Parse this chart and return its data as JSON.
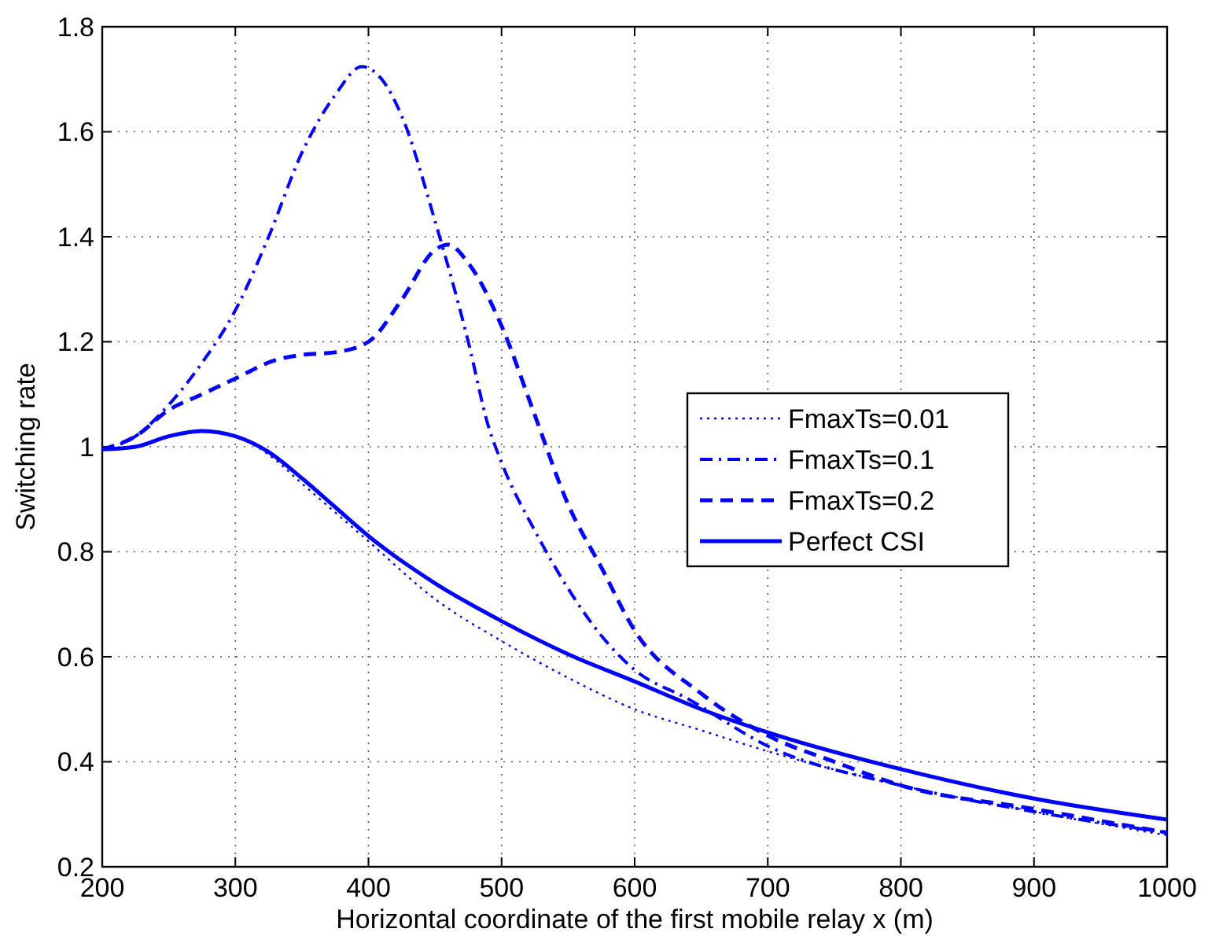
{
  "chart_data": {
    "type": "line",
    "xlabel": "Horizontal coordinate of the first mobile relay x (m)",
    "ylabel": "Switching rate",
    "xlim": [
      200,
      1000
    ],
    "ylim": [
      0.2,
      1.8
    ],
    "xticks": [
      200,
      300,
      400,
      500,
      600,
      700,
      800,
      900,
      1000
    ],
    "yticks": [
      0.2,
      0.4,
      0.6,
      0.8,
      1,
      1.2,
      1.4,
      1.6,
      1.8
    ],
    "grid": true,
    "legend": "right",
    "marker": "none",
    "series": [
      {
        "name": "FmaxTs=0.01",
        "color": "#0000ff",
        "line_style": "dotted",
        "x": [
          200,
          225,
          250,
          275,
          300,
          325,
          350,
          375,
          400,
          450,
          500,
          550,
          600,
          650,
          700,
          800,
          900,
          1000
        ],
        "values": [
          0.995,
          1.0,
          1.02,
          1.03,
          1.02,
          0.985,
          0.93,
          0.875,
          0.82,
          0.71,
          0.63,
          0.56,
          0.5,
          0.46,
          0.42,
          0.355,
          0.305,
          0.26
        ]
      },
      {
        "name": "FmaxTs=0.1",
        "color": "#0000ff",
        "line_style": "dashdot",
        "x": [
          200,
          225,
          250,
          275,
          300,
          325,
          350,
          375,
          395,
          410,
          425,
          450,
          475,
          490,
          500,
          525,
          550,
          575,
          600,
          640,
          700,
          800,
          900,
          1000
        ],
        "values": [
          0.995,
          1.02,
          1.08,
          1.16,
          1.26,
          1.4,
          1.56,
          1.67,
          1.724,
          1.7,
          1.63,
          1.43,
          1.2,
          1.04,
          0.97,
          0.84,
          0.73,
          0.64,
          0.575,
          0.52,
          0.43,
          0.355,
          0.305,
          0.265
        ]
      },
      {
        "name": "FmaxTs=0.2",
        "color": "#0000ff",
        "line_style": "dashed",
        "x": [
          200,
          225,
          250,
          275,
          300,
          330,
          350,
          375,
          400,
          425,
          450,
          460,
          475,
          500,
          525,
          550,
          575,
          600,
          650,
          700,
          750,
          800,
          900,
          1000
        ],
        "values": [
          0.995,
          1.02,
          1.07,
          1.1,
          1.13,
          1.165,
          1.175,
          1.18,
          1.2,
          1.28,
          1.375,
          1.385,
          1.35,
          1.23,
          1.06,
          0.89,
          0.77,
          0.65,
          0.53,
          0.45,
          0.4,
          0.355,
          0.31,
          0.265
        ]
      },
      {
        "name": "Perfect CSI",
        "color": "#0000ff",
        "line_style": "solid",
        "x": [
          200,
          225,
          250,
          275,
          300,
          325,
          350,
          375,
          400,
          450,
          500,
          550,
          600,
          650,
          700,
          800,
          900,
          1000
        ],
        "values": [
          0.995,
          1.0,
          1.02,
          1.03,
          1.02,
          0.99,
          0.94,
          0.885,
          0.83,
          0.74,
          0.668,
          0.605,
          0.553,
          0.5,
          0.456,
          0.386,
          0.33,
          0.29
        ]
      }
    ]
  }
}
